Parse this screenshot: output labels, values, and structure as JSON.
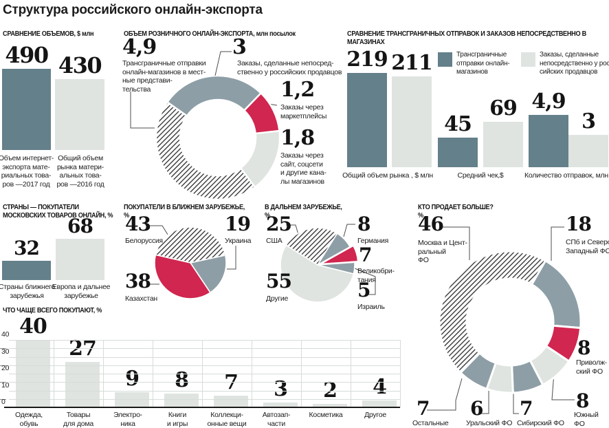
{
  "title": "Структура российского онлайн-экспорта",
  "colors": {
    "dark": "#64808a",
    "mid": "#8d9ea6",
    "light": "#dfe4e0",
    "red": "#d0264f",
    "text": "#1a1a1a"
  },
  "sections": {
    "volumes": {
      "header": "СРАВНЕНИЕ ОБЪЕМОВ, $ млн",
      "bars": [
        {
          "value": "490",
          "num": 490,
          "label": "Объем интернет-\nэкспорта мате-\nриальных това-\nров —2017 год"
        },
        {
          "value": "430",
          "num": 430,
          "label": "Общий объем\nрынка матери-\nальных това-\nров —2016 год"
        }
      ]
    },
    "retail": {
      "header": "ОБЪЕМ РОЗНИЧНОГО ОНЛАЙН-ЭКСПОРТА, млн посылок",
      "slices": [
        {
          "value": "3",
          "num": 3,
          "label": "Заказы, сделанные непосред-\nственно у российских продавцов",
          "fill": "mid"
        },
        {
          "value": "1,2",
          "num": 1.2,
          "label": "Заказы через\nмаркетплейсы",
          "fill": "red"
        },
        {
          "value": "1,8",
          "num": 1.8,
          "label": "Заказы через\nсайт, соцсети\nи другие кана-\nлы магазинов",
          "fill": "light"
        },
        {
          "value": "4,9",
          "num": 4.9,
          "label": "Трансграничные отправки\nонлайн-магазинов в мест-\nные представи-\nтельства",
          "fill": "hatch"
        }
      ]
    },
    "compare": {
      "header": "СРАВНЕНИЕ ТРАНСГРАНИЧНЫХ ОТПРАВОК И ЗАКАЗОВ НЕПОСРЕДСТВЕННО В МАГАЗИНАХ",
      "legend": [
        {
          "label": "Трансграничные\nотправки онлайн-\nмагазинов",
          "fill": "dark"
        },
        {
          "label": "Заказы, сделанные\nнепосредственно у рос-\nсийских продавцов",
          "fill": "light"
        }
      ],
      "bars": [
        {
          "value": "219",
          "num": 219
        },
        {
          "value": "211",
          "num": 211
        },
        {
          "value": "45",
          "num": 45
        },
        {
          "value": "69",
          "num": 69
        },
        {
          "value": "4,9",
          "num": 4.9
        },
        {
          "value": "3",
          "num": 3
        }
      ],
      "categories": [
        "Общий объем рынка , $ млн",
        "Средний чек,$",
        "Количество отправок, млн"
      ]
    },
    "countries": {
      "header": "СТРАНЫ — ПОКУПАТЕЛИ\nМОСКОВСКИХ ТОВАРОВ ОНЛАЙН, %",
      "bars": [
        {
          "value": "32",
          "num": 32,
          "label": "Страны ближнего\nзарубежья"
        },
        {
          "value": "68",
          "num": 68,
          "label": "Европа и дальнее\nзарубежье"
        }
      ]
    },
    "near": {
      "header": "ПОКУПАТЕЛИ В БЛИЖНЕМ ЗАРУБЕЖЬЕ,\n%",
      "slices": [
        {
          "value": "43",
          "num": 43,
          "label": "Белоруссия",
          "fill": "hatch"
        },
        {
          "value": "19",
          "num": 19,
          "label": "Украина",
          "fill": "mid"
        },
        {
          "value": "38",
          "num": 38,
          "label": "Казахстан",
          "fill": "red"
        }
      ]
    },
    "far": {
      "header": "В ДАЛЬНЕМ ЗАРУБЕЖЬЕ,\n%",
      "slices": [
        {
          "value": "25",
          "num": 25,
          "label": "США",
          "fill": "hatch"
        },
        {
          "value": "8",
          "num": 8,
          "label": "Германия",
          "fill": "mid"
        },
        {
          "value": "7",
          "num": 7,
          "label": "Великобри-\nтания",
          "fill": "red"
        },
        {
          "value": "5",
          "num": 5,
          "label": "Израиль",
          "fill": "mid"
        },
        {
          "value": "55",
          "num": 55,
          "label": "Другие",
          "fill": "light"
        }
      ]
    },
    "who": {
      "header": "КТО ПРОДАЕТ БОЛЬШЕ?\n%",
      "slices": [
        {
          "value": "18",
          "num": 18,
          "label": "СПб и Северо-\nЗападный ФО",
          "fill": "mid"
        },
        {
          "value": "8",
          "num": 8,
          "label": "Приволж-\nский ФО",
          "fill": "red"
        },
        {
          "value": "8",
          "num": 8,
          "label": "Южный\nФО",
          "fill": "light"
        },
        {
          "value": "7",
          "num": 7,
          "label": "Сибирский ФО",
          "fill": "mid"
        },
        {
          "value": "6",
          "num": 6,
          "label": "Уральский ФО",
          "fill": "light"
        },
        {
          "value": "7",
          "num": 7,
          "label": "Остальные",
          "fill": "mid"
        },
        {
          "value": "46",
          "num": 46,
          "label": "Москва и Цент-\nральный\nФО",
          "fill": "hatch"
        }
      ]
    },
    "buy": {
      "header": "ЧТО ЧАЩЕ ВСЕГО ПОКУПАЮТ, %",
      "axis": [
        "40",
        "30",
        "20",
        "10",
        "0"
      ],
      "bars": [
        {
          "value": "40",
          "num": 40,
          "label": "Одежда,\nобувь"
        },
        {
          "value": "27",
          "num": 27,
          "label": "Товары\nдля дома"
        },
        {
          "value": "9",
          "num": 9,
          "label": "Электро-\nника"
        },
        {
          "value": "8",
          "num": 8,
          "label": "Книги\nи игры"
        },
        {
          "value": "7",
          "num": 7,
          "label": "Коллекци-\nонные вещи"
        },
        {
          "value": "3",
          "num": 3,
          "label": "Автозап-\nчасти"
        },
        {
          "value": "2",
          "num": 2,
          "label": "Косметика"
        },
        {
          "value": "4",
          "num": 4,
          "label": "Другое"
        }
      ]
    }
  },
  "chart_data": [
    {
      "type": "bar",
      "title": "СРАВНЕНИЕ ОБЪЕМОВ, $ млн",
      "categories": [
        "Объем интернет-экспорта материальных товаров —2017 год",
        "Общий объем рынка материальных товаров —2016 год"
      ],
      "values": [
        490,
        430
      ]
    },
    {
      "type": "pie",
      "subtype": "donut",
      "title": "ОБЪЕМ РОЗНИЧНОГО ОНЛАЙН-ЭКСПОРТА, млн посылок",
      "labels": [
        "Заказы, сделанные непосредственно у российских продавцов",
        "Заказы через маркетплейсы",
        "Заказы через сайт, соцсети и другие каналы магазинов",
        "Трансграничные отправки онлайн-магазинов в местные представительства"
      ],
      "values": [
        3,
        1.2,
        1.8,
        4.9
      ]
    },
    {
      "type": "bar",
      "title": "СРАВНЕНИЕ ТРАНСГРАНИЧНЫХ ОТПРАВОК И ЗАКАЗОВ НЕПОСРЕДСТВЕННО В МАГАЗИНАХ",
      "categories": [
        "Общий объем рынка , $ млн",
        "Средний чек,$",
        "Количество отправок, млн"
      ],
      "series": [
        {
          "name": "Трансграничные отправки онлайн-магазинов",
          "values": [
            219,
            45,
            4.9
          ]
        },
        {
          "name": "Заказы, сделанные непосредственно у российских продавцов",
          "values": [
            211,
            69,
            3
          ]
        }
      ]
    },
    {
      "type": "bar",
      "title": "СТРАНЫ — ПОКУПАТЕЛИ МОСКОВСКИХ ТОВАРОВ ОНЛАЙН, %",
      "categories": [
        "Страны ближнего зарубежья",
        "Европа и дальнее зарубежье"
      ],
      "values": [
        32,
        68
      ]
    },
    {
      "type": "pie",
      "title": "ПОКУПАТЕЛИ В БЛИЖНЕМ ЗАРУБЕЖЬЕ, %",
      "labels": [
        "Белоруссия",
        "Украина",
        "Казахстан"
      ],
      "values": [
        43,
        19,
        38
      ]
    },
    {
      "type": "pie",
      "title": "В ДАЛЬНЕМ ЗАРУБЕЖЬЕ, %",
      "labels": [
        "США",
        "Германия",
        "Великобритания",
        "Израиль",
        "Другие"
      ],
      "values": [
        25,
        8,
        7,
        5,
        55
      ]
    },
    {
      "type": "pie",
      "subtype": "donut",
      "title": "КТО ПРОДАЕТ БОЛЬШЕ? %",
      "labels": [
        "СПб и Северо-Западный ФО",
        "Приволжский ФО",
        "Южный ФО",
        "Сибирский ФО",
        "Уральский ФО",
        "Остальные",
        "Москва и Центральный ФО"
      ],
      "values": [
        18,
        8,
        8,
        7,
        6,
        7,
        46
      ]
    },
    {
      "type": "bar",
      "title": "ЧТО ЧАЩЕ ВСЕГО ПОКУПАЮТ, %",
      "ylim": [
        0,
        40
      ],
      "grid": true,
      "categories": [
        "Одежда, обувь",
        "Товары для дома",
        "Электроника",
        "Книги и игры",
        "Коллекционные вещи",
        "Автозапчасти",
        "Косметика",
        "Другое"
      ],
      "values": [
        40,
        27,
        9,
        8,
        7,
        3,
        2,
        4
      ]
    }
  ]
}
